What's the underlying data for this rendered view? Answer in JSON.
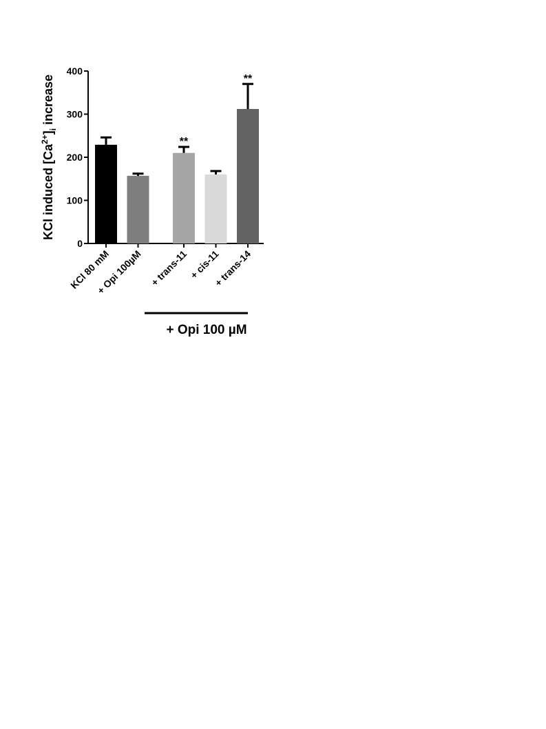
{
  "chart_data": {
    "type": "bar",
    "y_label": [
      "KCl induced [Ca",
      "2+",
      "]",
      "i",
      " increase"
    ],
    "categories": [
      "KCl 80 mM",
      "+ Opi 100µM",
      "+ trans-11",
      "+ cis-11",
      "+ trans-14"
    ],
    "values": [
      229,
      157,
      210,
      160,
      312
    ],
    "errors": [
      17,
      5,
      14,
      8,
      58
    ],
    "colors": [
      "#000000",
      "#7f7f7f",
      "#a6a6a6",
      "#d9d9d9",
      "#636363"
    ],
    "annotations": [
      {
        "index": 2,
        "text": "**"
      },
      {
        "index": 4,
        "text": "**"
      }
    ],
    "group": {
      "label": "+ Opi 100 µM",
      "from": 2,
      "to": 4
    },
    "ylim": [
      0,
      400
    ],
    "yticks": [
      0,
      100,
      200,
      300,
      400
    ],
    "grid": false
  }
}
